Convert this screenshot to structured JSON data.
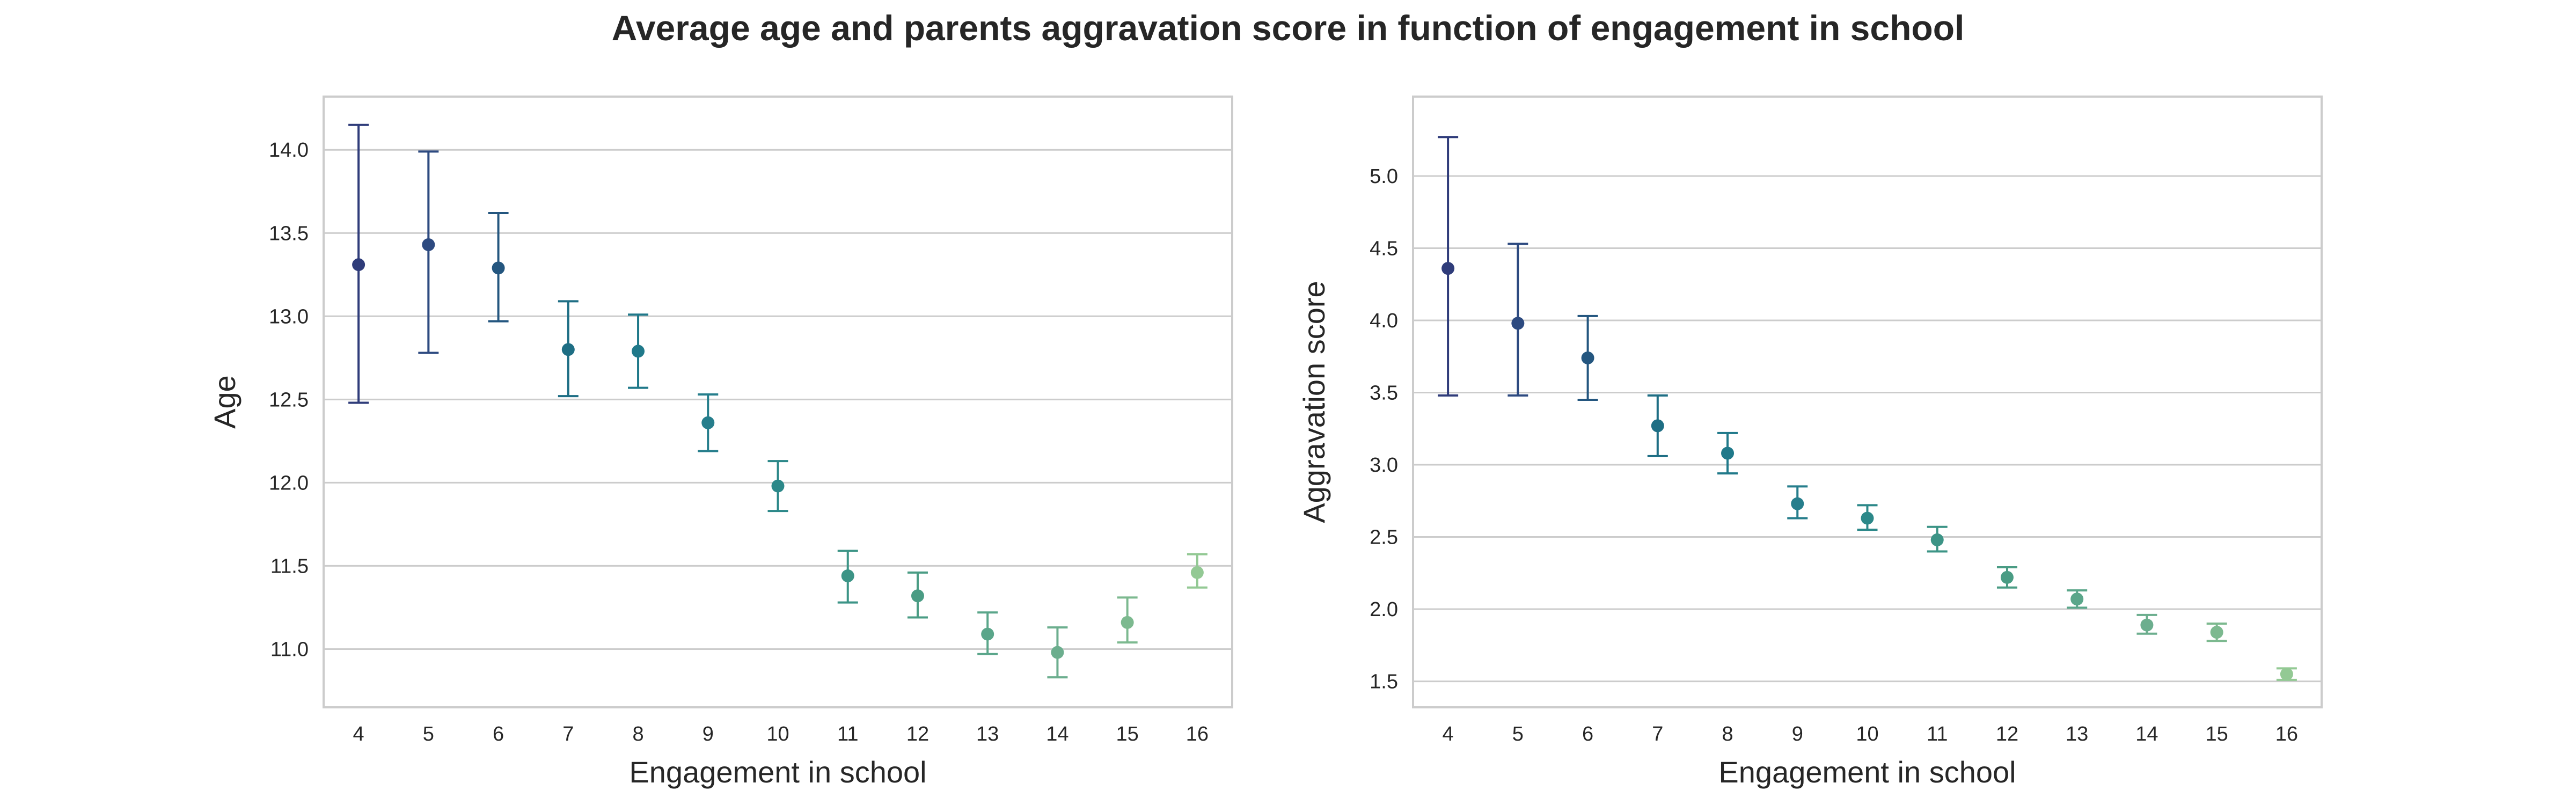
{
  "figure": {
    "title": "Average age and parents aggravation score in function of engagement in school"
  },
  "chart_data": [
    {
      "type": "scatter",
      "subtype": "pointplot-with-error-bars",
      "xlabel": "Engagement in school",
      "ylabel": "Age",
      "categories": [
        "4",
        "5",
        "6",
        "7",
        "8",
        "9",
        "10",
        "11",
        "12",
        "13",
        "14",
        "15",
        "16"
      ],
      "values": [
        13.31,
        13.43,
        13.29,
        12.8,
        12.79,
        12.36,
        11.98,
        11.44,
        11.32,
        11.09,
        10.98,
        11.16,
        11.46
      ],
      "err_low": [
        12.48,
        12.78,
        12.97,
        12.52,
        12.57,
        12.19,
        11.83,
        11.28,
        11.19,
        10.97,
        10.83,
        11.04,
        11.37
      ],
      "err_high": [
        14.15,
        13.99,
        13.62,
        13.09,
        13.01,
        12.53,
        12.13,
        11.59,
        11.46,
        11.22,
        11.13,
        11.31,
        11.57
      ],
      "ylim": [
        10.65,
        14.32
      ],
      "yticks": [
        "11.0",
        "11.5",
        "12.0",
        "12.5",
        "13.0",
        "13.5",
        "14.0"
      ],
      "grid": "horizontal",
      "colors": [
        "#2f3c7a",
        "#2d4a80",
        "#24567f",
        "#1e6e84",
        "#20798a",
        "#267e8c",
        "#2c8889",
        "#3c9486",
        "#4a9c84",
        "#5aa68a",
        "#6cae8e",
        "#7cb98f",
        "#93c994"
      ]
    },
    {
      "type": "scatter",
      "subtype": "pointplot-with-error-bars",
      "xlabel": "Engagement in school",
      "ylabel": "Aggravation score",
      "categories": [
        "4",
        "5",
        "6",
        "7",
        "8",
        "9",
        "10",
        "11",
        "12",
        "13",
        "14",
        "15",
        "16"
      ],
      "values": [
        4.36,
        3.98,
        3.74,
        3.27,
        3.08,
        2.73,
        2.63,
        2.48,
        2.22,
        2.07,
        1.89,
        1.84,
        1.55
      ],
      "err_low": [
        3.48,
        3.48,
        3.45,
        3.06,
        2.94,
        2.63,
        2.55,
        2.4,
        2.15,
        2.01,
        1.83,
        1.78,
        1.51
      ],
      "err_high": [
        5.27,
        4.53,
        4.03,
        3.48,
        3.22,
        2.85,
        2.72,
        2.57,
        2.29,
        2.13,
        1.96,
        1.9,
        1.59
      ],
      "ylim": [
        1.32,
        5.55
      ],
      "yticks": [
        "1.5",
        "2.0",
        "2.5",
        "3.0",
        "3.5",
        "4.0",
        "4.5",
        "5.0"
      ],
      "grid": "horizontal",
      "colors": [
        "#2f3c7a",
        "#2d4a80",
        "#24567f",
        "#1e6e84",
        "#20798a",
        "#267e8c",
        "#2c8889",
        "#3c9486",
        "#4a9c84",
        "#5aa68a",
        "#6cae8e",
        "#7cb98f",
        "#93c994"
      ]
    }
  ]
}
